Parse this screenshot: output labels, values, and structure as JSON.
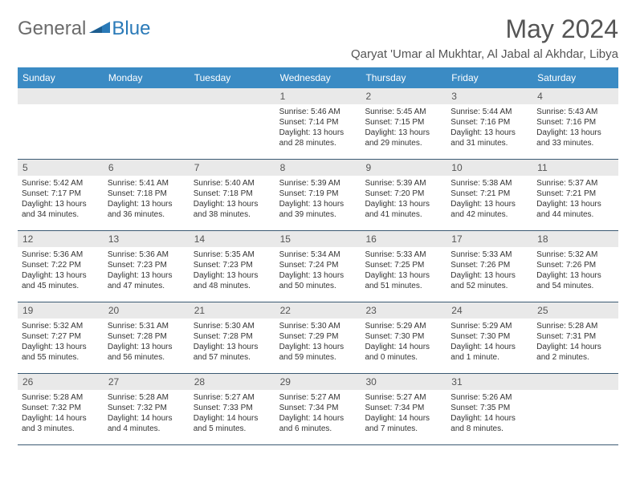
{
  "brand": {
    "general": "General",
    "blue": "Blue"
  },
  "title": "May 2024",
  "location": "Qaryat 'Umar al Mukhtar, Al Jabal al Akhdar, Libya",
  "colors": {
    "header_bg": "#3b8bc4",
    "header_text": "#ffffff",
    "daynum_bg": "#e9e9e9",
    "border": "#3b5a73",
    "logo_gray": "#6b6b6b",
    "logo_blue": "#2a7ab8"
  },
  "dows": [
    "Sunday",
    "Monday",
    "Tuesday",
    "Wednesday",
    "Thursday",
    "Friday",
    "Saturday"
  ],
  "weekdata": [
    [
      null,
      null,
      null,
      {
        "n": "1",
        "sr": "Sunrise: 5:46 AM",
        "ss": "Sunset: 7:14 PM",
        "dl1": "Daylight: 13 hours",
        "dl2": "and 28 minutes."
      },
      {
        "n": "2",
        "sr": "Sunrise: 5:45 AM",
        "ss": "Sunset: 7:15 PM",
        "dl1": "Daylight: 13 hours",
        "dl2": "and 29 minutes."
      },
      {
        "n": "3",
        "sr": "Sunrise: 5:44 AM",
        "ss": "Sunset: 7:16 PM",
        "dl1": "Daylight: 13 hours",
        "dl2": "and 31 minutes."
      },
      {
        "n": "4",
        "sr": "Sunrise: 5:43 AM",
        "ss": "Sunset: 7:16 PM",
        "dl1": "Daylight: 13 hours",
        "dl2": "and 33 minutes."
      }
    ],
    [
      {
        "n": "5",
        "sr": "Sunrise: 5:42 AM",
        "ss": "Sunset: 7:17 PM",
        "dl1": "Daylight: 13 hours",
        "dl2": "and 34 minutes."
      },
      {
        "n": "6",
        "sr": "Sunrise: 5:41 AM",
        "ss": "Sunset: 7:18 PM",
        "dl1": "Daylight: 13 hours",
        "dl2": "and 36 minutes."
      },
      {
        "n": "7",
        "sr": "Sunrise: 5:40 AM",
        "ss": "Sunset: 7:18 PM",
        "dl1": "Daylight: 13 hours",
        "dl2": "and 38 minutes."
      },
      {
        "n": "8",
        "sr": "Sunrise: 5:39 AM",
        "ss": "Sunset: 7:19 PM",
        "dl1": "Daylight: 13 hours",
        "dl2": "and 39 minutes."
      },
      {
        "n": "9",
        "sr": "Sunrise: 5:39 AM",
        "ss": "Sunset: 7:20 PM",
        "dl1": "Daylight: 13 hours",
        "dl2": "and 41 minutes."
      },
      {
        "n": "10",
        "sr": "Sunrise: 5:38 AM",
        "ss": "Sunset: 7:21 PM",
        "dl1": "Daylight: 13 hours",
        "dl2": "and 42 minutes."
      },
      {
        "n": "11",
        "sr": "Sunrise: 5:37 AM",
        "ss": "Sunset: 7:21 PM",
        "dl1": "Daylight: 13 hours",
        "dl2": "and 44 minutes."
      }
    ],
    [
      {
        "n": "12",
        "sr": "Sunrise: 5:36 AM",
        "ss": "Sunset: 7:22 PM",
        "dl1": "Daylight: 13 hours",
        "dl2": "and 45 minutes."
      },
      {
        "n": "13",
        "sr": "Sunrise: 5:36 AM",
        "ss": "Sunset: 7:23 PM",
        "dl1": "Daylight: 13 hours",
        "dl2": "and 47 minutes."
      },
      {
        "n": "14",
        "sr": "Sunrise: 5:35 AM",
        "ss": "Sunset: 7:23 PM",
        "dl1": "Daylight: 13 hours",
        "dl2": "and 48 minutes."
      },
      {
        "n": "15",
        "sr": "Sunrise: 5:34 AM",
        "ss": "Sunset: 7:24 PM",
        "dl1": "Daylight: 13 hours",
        "dl2": "and 50 minutes."
      },
      {
        "n": "16",
        "sr": "Sunrise: 5:33 AM",
        "ss": "Sunset: 7:25 PM",
        "dl1": "Daylight: 13 hours",
        "dl2": "and 51 minutes."
      },
      {
        "n": "17",
        "sr": "Sunrise: 5:33 AM",
        "ss": "Sunset: 7:26 PM",
        "dl1": "Daylight: 13 hours",
        "dl2": "and 52 minutes."
      },
      {
        "n": "18",
        "sr": "Sunrise: 5:32 AM",
        "ss": "Sunset: 7:26 PM",
        "dl1": "Daylight: 13 hours",
        "dl2": "and 54 minutes."
      }
    ],
    [
      {
        "n": "19",
        "sr": "Sunrise: 5:32 AM",
        "ss": "Sunset: 7:27 PM",
        "dl1": "Daylight: 13 hours",
        "dl2": "and 55 minutes."
      },
      {
        "n": "20",
        "sr": "Sunrise: 5:31 AM",
        "ss": "Sunset: 7:28 PM",
        "dl1": "Daylight: 13 hours",
        "dl2": "and 56 minutes."
      },
      {
        "n": "21",
        "sr": "Sunrise: 5:30 AM",
        "ss": "Sunset: 7:28 PM",
        "dl1": "Daylight: 13 hours",
        "dl2": "and 57 minutes."
      },
      {
        "n": "22",
        "sr": "Sunrise: 5:30 AM",
        "ss": "Sunset: 7:29 PM",
        "dl1": "Daylight: 13 hours",
        "dl2": "and 59 minutes."
      },
      {
        "n": "23",
        "sr": "Sunrise: 5:29 AM",
        "ss": "Sunset: 7:30 PM",
        "dl1": "Daylight: 14 hours",
        "dl2": "and 0 minutes."
      },
      {
        "n": "24",
        "sr": "Sunrise: 5:29 AM",
        "ss": "Sunset: 7:30 PM",
        "dl1": "Daylight: 14 hours",
        "dl2": "and 1 minute."
      },
      {
        "n": "25",
        "sr": "Sunrise: 5:28 AM",
        "ss": "Sunset: 7:31 PM",
        "dl1": "Daylight: 14 hours",
        "dl2": "and 2 minutes."
      }
    ],
    [
      {
        "n": "26",
        "sr": "Sunrise: 5:28 AM",
        "ss": "Sunset: 7:32 PM",
        "dl1": "Daylight: 14 hours",
        "dl2": "and 3 minutes."
      },
      {
        "n": "27",
        "sr": "Sunrise: 5:28 AM",
        "ss": "Sunset: 7:32 PM",
        "dl1": "Daylight: 14 hours",
        "dl2": "and 4 minutes."
      },
      {
        "n": "28",
        "sr": "Sunrise: 5:27 AM",
        "ss": "Sunset: 7:33 PM",
        "dl1": "Daylight: 14 hours",
        "dl2": "and 5 minutes."
      },
      {
        "n": "29",
        "sr": "Sunrise: 5:27 AM",
        "ss": "Sunset: 7:34 PM",
        "dl1": "Daylight: 14 hours",
        "dl2": "and 6 minutes."
      },
      {
        "n": "30",
        "sr": "Sunrise: 5:27 AM",
        "ss": "Sunset: 7:34 PM",
        "dl1": "Daylight: 14 hours",
        "dl2": "and 7 minutes."
      },
      {
        "n": "31",
        "sr": "Sunrise: 5:26 AM",
        "ss": "Sunset: 7:35 PM",
        "dl1": "Daylight: 14 hours",
        "dl2": "and 8 minutes."
      },
      null
    ]
  ]
}
